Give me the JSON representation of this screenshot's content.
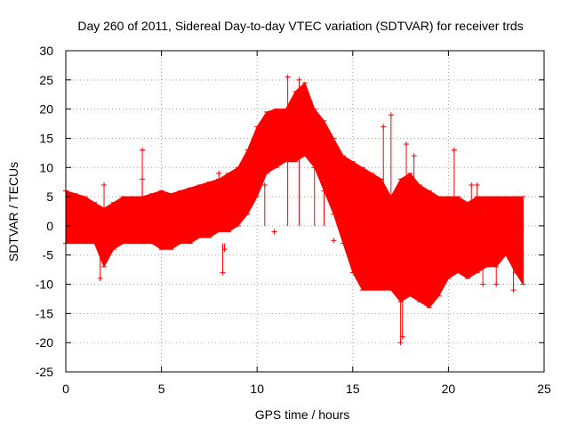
{
  "chart_data": {
    "type": "line",
    "title": "Day 260 of 2011, Sidereal Day-to-day VTEC variation (SDTVAR) for receiver trds",
    "xlabel": "GPS time / hours",
    "ylabel": "SDTVAR / TECUs",
    "xlim": [
      0,
      25
    ],
    "ylim": [
      -25,
      30
    ],
    "xticks": [
      0,
      5,
      10,
      15,
      20,
      25
    ],
    "yticks": [
      -25,
      -20,
      -15,
      -10,
      -5,
      0,
      5,
      10,
      15,
      20,
      25,
      30
    ],
    "grid": true,
    "series_color": "#ff0000",
    "series": [
      {
        "name": "SDTVAR",
        "style": "errorbars",
        "x": [
          0.0,
          0.5,
          1.0,
          1.5,
          2.0,
          2.5,
          3.0,
          3.5,
          4.0,
          4.5,
          5.0,
          5.5,
          6.0,
          6.5,
          7.0,
          7.5,
          8.0,
          8.5,
          9.0,
          9.5,
          10.0,
          10.5,
          11.0,
          11.5,
          12.0,
          12.5,
          13.0,
          13.5,
          14.0,
          14.5,
          15.0,
          15.5,
          16.0,
          16.5,
          17.0,
          17.5,
          18.0,
          18.5,
          19.0,
          19.5,
          20.0,
          20.5,
          21.0,
          21.5,
          22.0,
          22.5,
          23.0,
          23.5,
          23.9
        ],
        "upper": [
          6,
          5.5,
          5,
          4,
          3,
          4,
          5,
          5,
          5,
          5.5,
          6,
          5.5,
          6,
          6.5,
          7,
          7.5,
          8,
          9,
          10,
          13,
          17,
          19.5,
          20,
          20,
          23,
          24.5,
          20,
          18,
          15,
          12,
          11,
          10,
          9,
          8,
          5,
          8,
          9,
          7,
          6,
          5,
          5,
          5,
          4,
          5,
          5,
          5,
          5,
          5,
          5
        ],
        "lower": [
          -3,
          -3,
          -3,
          -3,
          -7,
          -4,
          -3,
          -3,
          -3,
          -3,
          -4,
          -4,
          -3,
          -3,
          -2,
          -2,
          -1,
          -1,
          0,
          2,
          5,
          9,
          10,
          11,
          11,
          12,
          10,
          6,
          2,
          -3,
          -8,
          -11,
          -11,
          -11,
          -11,
          -13,
          -12,
          -13,
          -14,
          -12,
          -9,
          -8,
          -9,
          -8,
          -7,
          -7,
          -5,
          -8,
          -10
        ],
        "outliers_x": [
          2.0,
          1.8,
          4.0,
          4.0,
          8.0,
          8.2,
          8.3,
          10.4,
          10.9,
          11.6,
          12.2,
          13.0,
          13.5,
          14.0,
          16.2,
          16.6,
          17.0,
          17.2,
          17.5,
          17.6,
          17.8,
          18.2,
          18.5,
          20.3,
          21.2,
          21.5,
          21.8,
          22.5,
          23.4
        ],
        "outliers_y": [
          7,
          -9,
          13,
          8,
          9,
          -8,
          -4,
          7,
          -1,
          25.5,
          25,
          13,
          12,
          -2.5,
          7,
          17,
          19,
          -3,
          -20,
          -19,
          14,
          12,
          5,
          13,
          7,
          7,
          -10,
          -10,
          -11
        ]
      }
    ]
  }
}
